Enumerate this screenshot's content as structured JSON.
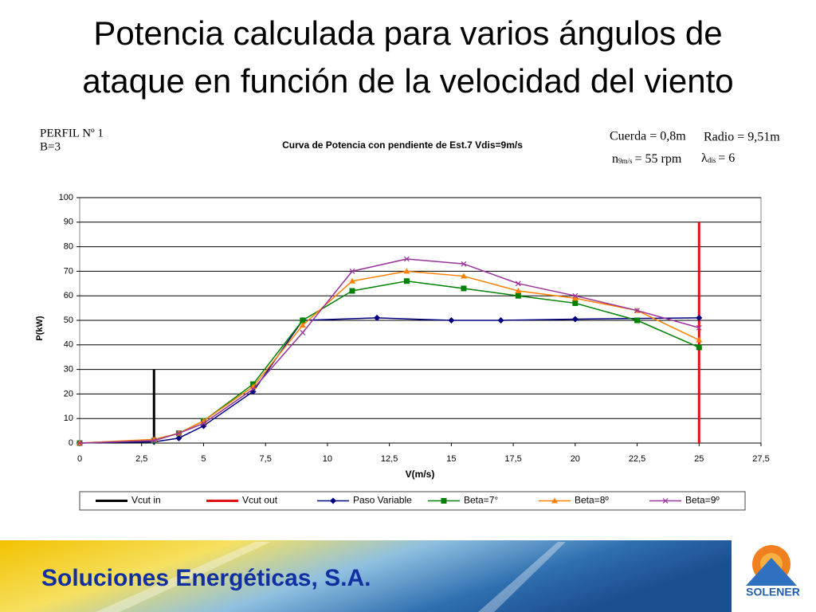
{
  "slide": {
    "title_lines": [
      "Potencia calculada para varios ángulos de",
      "ataque en función de la velocidad del viento"
    ],
    "footer": "Soluciones Energéticas, S.A.",
    "logo_text": "SOLENER"
  },
  "chart_data": {
    "type": "line",
    "title": "Curva de Potencia con pendiente de Est.7 Vdis=9m/s",
    "annotations": {
      "profile": "PERFIL Nº 1",
      "blades": "B=3",
      "chord": "Cuerda = 0,8m",
      "radius": "Radio = 9,51m",
      "speed": {
        "symbol": "n",
        "subscript": "9m/s",
        "text": "= 55 rpm"
      },
      "tsr": {
        "symbol": "λ",
        "subscript": "dis",
        "text": "= 6"
      }
    },
    "xlabel": "V(m/s)",
    "ylabel": "P(kW)",
    "xlim": [
      0,
      27.5
    ],
    "ylim": [
      0,
      100
    ],
    "xticks": [
      0,
      {
        "value": 2.5,
        "label": "2,5"
      },
      5,
      {
        "value": 7.5,
        "label": "7,5"
      },
      10,
      {
        "value": 12.5,
        "label": "12,5"
      },
      15,
      {
        "value": 17.5,
        "label": "17,5"
      },
      20,
      {
        "value": 22.5,
        "label": "22,5"
      },
      25,
      {
        "value": 27.5,
        "label": "27,5"
      }
    ],
    "yticks": [
      0,
      10,
      20,
      30,
      40,
      50,
      60,
      70,
      80,
      90,
      100
    ],
    "grid": true,
    "series": [
      {
        "name": "Vcut in",
        "color": "#000000",
        "marker": "none",
        "x": [
          3,
          3
        ],
        "values": [
          0,
          30
        ]
      },
      {
        "name": "Vcut out",
        "color": "#e01010",
        "marker": "none",
        "x": [
          25,
          25
        ],
        "values": [
          0,
          90
        ]
      },
      {
        "name": "Paso Variable",
        "color": "#000080",
        "marker": "diamond",
        "x": [
          0,
          3,
          4,
          5,
          7,
          9,
          12,
          15,
          17,
          20,
          25
        ],
        "values": [
          0,
          0.5,
          2,
          7,
          21,
          50,
          51,
          50,
          50,
          50.5,
          51
        ]
      },
      {
        "name": "Beta=7°",
        "color": "#008000",
        "marker": "square",
        "x": [
          0,
          3,
          4,
          5,
          7,
          9,
          11,
          13.2,
          15.5,
          17.7,
          20,
          22.5,
          25
        ],
        "values": [
          0,
          1,
          4,
          9,
          24,
          50,
          62,
          66,
          63,
          60,
          57,
          50,
          39
        ]
      },
      {
        "name": "Beta=8º",
        "color": "#ff8000",
        "marker": "triangle",
        "x": [
          0,
          3,
          4,
          5,
          7,
          9,
          11,
          13.2,
          15.5,
          17.7,
          20,
          22.5,
          25
        ],
        "values": [
          0,
          1.5,
          4,
          9,
          23,
          48,
          66,
          70,
          68,
          62,
          59,
          54,
          42
        ]
      },
      {
        "name": "Beta=9º",
        "color": "#993399",
        "marker": "x",
        "x": [
          0,
          3,
          4,
          5,
          7,
          9,
          11,
          13.2,
          15.5,
          17.7,
          20,
          22.5,
          25
        ],
        "values": [
          0,
          1,
          4,
          8,
          22,
          45,
          70,
          75,
          73,
          65,
          60,
          54,
          47
        ]
      }
    ]
  }
}
